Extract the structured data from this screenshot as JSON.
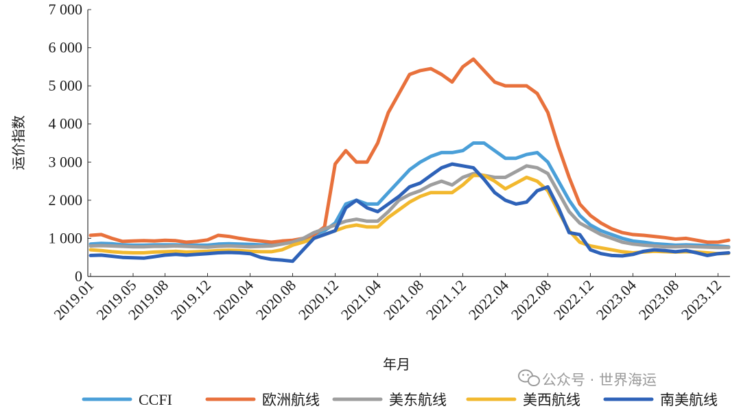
{
  "chart_data": {
    "type": "line",
    "ylabel": "运价指数",
    "xlabel": "年月",
    "ylim": [
      0,
      7000
    ],
    "yticks": [
      0,
      1000,
      2000,
      3000,
      4000,
      5000,
      6000,
      7000
    ],
    "ytick_labels": [
      "0",
      "1 000",
      "2 000",
      "3 000",
      "4 000",
      "5 000",
      "6 000",
      "7 000"
    ],
    "xtick_labels": [
      "2019.01",
      "2019.05",
      "2019.08",
      "2019.12",
      "2020.04",
      "2020.08",
      "2020.12",
      "2021.04",
      "2021.08",
      "2021.12",
      "2022.04",
      "2022.08",
      "2022.12",
      "2023.04",
      "2023.08",
      "2023.12"
    ],
    "xtick_index": [
      0,
      4,
      7,
      11,
      15,
      19,
      23,
      27,
      31,
      35,
      39,
      43,
      47,
      51,
      55,
      59
    ],
    "x": [
      "2019.01",
      "2019.02",
      "2019.03",
      "2019.04",
      "2019.05",
      "2019.06",
      "2019.07",
      "2019.08",
      "2019.09",
      "2019.10",
      "2019.11",
      "2019.12",
      "2020.01",
      "2020.02",
      "2020.03",
      "2020.04",
      "2020.05",
      "2020.06",
      "2020.07",
      "2020.08",
      "2020.09",
      "2020.10",
      "2020.11",
      "2020.12",
      "2021.01",
      "2021.02",
      "2021.03",
      "2021.04",
      "2021.05",
      "2021.06",
      "2021.07",
      "2021.08",
      "2021.09",
      "2021.10",
      "2021.11",
      "2021.12",
      "2022.01",
      "2022.02",
      "2022.03",
      "2022.04",
      "2022.05",
      "2022.06",
      "2022.07",
      "2022.08",
      "2022.09",
      "2022.10",
      "2022.11",
      "2022.12",
      "2023.01",
      "2023.02",
      "2023.03",
      "2023.04",
      "2023.05",
      "2023.06",
      "2023.07",
      "2023.08",
      "2023.09",
      "2023.10",
      "2023.11",
      "2023.12",
      "2024.01"
    ],
    "legend_position": "bottom",
    "grid": false,
    "series": [
      {
        "name": "CCFI",
        "color": "#4a9fd8",
        "values": [
          850,
          870,
          860,
          830,
          820,
          820,
          830,
          830,
          830,
          820,
          820,
          820,
          850,
          860,
          850,
          840,
          830,
          830,
          860,
          900,
          980,
          1100,
          1200,
          1400,
          1900,
          2000,
          1900,
          1900,
          2200,
          2500,
          2800,
          3000,
          3150,
          3250,
          3250,
          3300,
          3500,
          3500,
          3300,
          3100,
          3100,
          3200,
          3250,
          3000,
          2500,
          2000,
          1600,
          1350,
          1200,
          1100,
          1000,
          930,
          900,
          860,
          840,
          820,
          830,
          820,
          810,
          800,
          780
        ]
      },
      {
        "name": "欧洲航线",
        "color": "#e8713c",
        "values": [
          1080,
          1100,
          1000,
          920,
          930,
          940,
          930,
          950,
          940,
          900,
          920,
          960,
          1080,
          1050,
          1000,
          960,
          930,
          900,
          930,
          950,
          1000,
          1100,
          1300,
          2950,
          3300,
          3000,
          3000,
          3500,
          4300,
          4800,
          5300,
          5400,
          5450,
          5300,
          5100,
          5500,
          5700,
          5400,
          5100,
          5000,
          5000,
          5000,
          4800,
          4300,
          3400,
          2600,
          1900,
          1600,
          1400,
          1250,
          1150,
          1100,
          1080,
          1050,
          1020,
          980,
          1000,
          950,
          900,
          900,
          950
        ]
      },
      {
        "name": "美东航线",
        "color": "#9e9e9e",
        "values": [
          800,
          810,
          800,
          790,
          780,
          780,
          790,
          790,
          800,
          790,
          780,
          770,
          790,
          800,
          790,
          780,
          790,
          800,
          850,
          900,
          1000,
          1150,
          1250,
          1350,
          1450,
          1500,
          1450,
          1450,
          1700,
          2000,
          2150,
          2250,
          2400,
          2500,
          2400,
          2600,
          2700,
          2650,
          2600,
          2600,
          2750,
          2900,
          2850,
          2700,
          2200,
          1700,
          1400,
          1250,
          1100,
          1000,
          900,
          850,
          820,
          800,
          780,
          780,
          790,
          780,
          770,
          760,
          760
        ]
      },
      {
        "name": "美西航线",
        "color": "#f2b82e",
        "values": [
          700,
          680,
          650,
          630,
          620,
          620,
          640,
          650,
          660,
          640,
          650,
          660,
          680,
          690,
          680,
          660,
          650,
          650,
          700,
          820,
          900,
          1000,
          1100,
          1200,
          1300,
          1350,
          1300,
          1300,
          1550,
          1750,
          1950,
          2100,
          2200,
          2200,
          2200,
          2400,
          2650,
          2650,
          2500,
          2300,
          2450,
          2600,
          2500,
          2250,
          1700,
          1200,
          900,
          800,
          750,
          700,
          650,
          620,
          640,
          660,
          650,
          640,
          650,
          640,
          620,
          600,
          610
        ]
      },
      {
        "name": "南美航线",
        "color": "#2e62b8",
        "values": [
          550,
          560,
          530,
          500,
          490,
          480,
          520,
          560,
          580,
          560,
          580,
          600,
          620,
          630,
          620,
          600,
          500,
          450,
          430,
          400,
          700,
          1000,
          1100,
          1200,
          1800,
          2000,
          1800,
          1700,
          1900,
          2100,
          2350,
          2450,
          2650,
          2850,
          2950,
          2900,
          2850,
          2550,
          2200,
          2000,
          1900,
          1950,
          2250,
          2350,
          1800,
          1150,
          1100,
          700,
          600,
          550,
          540,
          580,
          660,
          700,
          680,
          650,
          680,
          620,
          550,
          600,
          620
        ]
      }
    ]
  },
  "watermark": {
    "text": "公众号 · 世界海运"
  }
}
